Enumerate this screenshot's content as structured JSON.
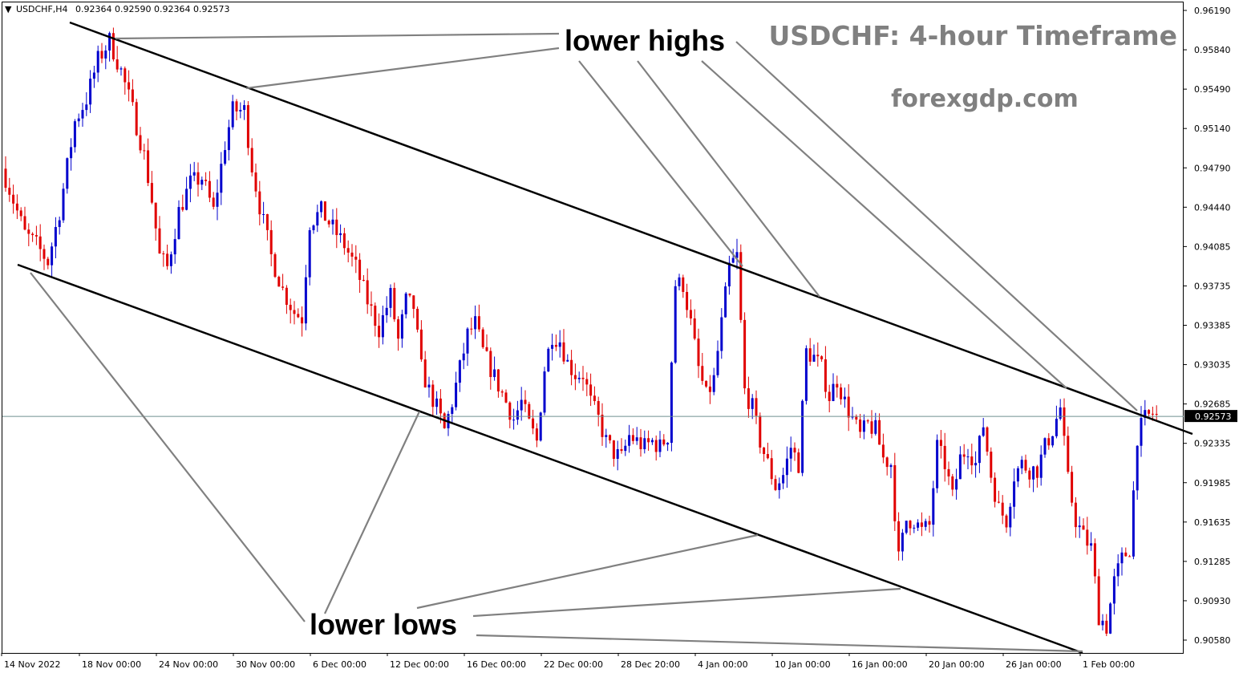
{
  "header": {
    "symbol": "USDCHF,H4",
    "ohlc": "0.92364 0.92590 0.92364 0.92573",
    "caret": "▼"
  },
  "watermark": {
    "title": "USDCHF: 4-hour Timeframe",
    "site": "forexgdp.com"
  },
  "annotations": {
    "lower_highs": "lower highs",
    "lower_lows": "lower lows"
  },
  "chart_data": {
    "type": "candlestick",
    "symbol": "USDCHF",
    "timeframe": "H4",
    "ylim": [
      0.9045,
      0.9626
    ],
    "y_ticks": [
      "0.96190",
      "0.95840",
      "0.95490",
      "0.95140",
      "0.94790",
      "0.94440",
      "0.94085",
      "0.93735",
      "0.93385",
      "0.93035",
      "0.92685",
      "0.92335",
      "0.91985",
      "0.91635",
      "0.91285",
      "0.90930",
      "0.90580"
    ],
    "x_ticks": [
      "14 Nov 2022",
      "18 Nov 00:00",
      "24 Nov 00:00",
      "30 Nov 00:00",
      "6 Dec 00:00",
      "12 Dec 00:00",
      "16 Dec 00:00",
      "22 Dec 00:00",
      "28 Dec 20:00",
      "4 Jan 00:00",
      "10 Jan 00:00",
      "16 Jan 00:00",
      "20 Jan 00:00",
      "26 Jan 00:00",
      "1 Feb 00:00"
    ],
    "current_price": "0.92573",
    "bull_color": "#0000CD",
    "bear_color": "#E00000",
    "bar_count": 300,
    "bar_step_px": 4.8,
    "anchors": [
      [
        0,
        0.947
      ],
      [
        5,
        0.942
      ],
      [
        8,
        0.941
      ],
      [
        11,
        0.9395
      ],
      [
        14,
        0.944
      ],
      [
        18,
        0.952
      ],
      [
        21,
        0.954
      ],
      [
        24,
        0.9575
      ],
      [
        27,
        0.9592
      ],
      [
        30,
        0.9565
      ],
      [
        33,
        0.953
      ],
      [
        36,
        0.949
      ],
      [
        38,
        0.945
      ],
      [
        40,
        0.94
      ],
      [
        42,
        0.939
      ],
      [
        45,
        0.944
      ],
      [
        48,
        0.9465
      ],
      [
        51,
        0.947
      ],
      [
        54,
        0.944
      ],
      [
        57,
        0.95
      ],
      [
        59,
        0.953
      ],
      [
        62,
        0.953
      ],
      [
        64,
        0.948
      ],
      [
        66,
        0.9445
      ],
      [
        69,
        0.94
      ],
      [
        72,
        0.937
      ],
      [
        75,
        0.935
      ],
      [
        77,
        0.9345
      ],
      [
        79,
        0.943
      ],
      [
        82,
        0.944
      ],
      [
        85,
        0.9425
      ],
      [
        88,
        0.941
      ],
      [
        91,
        0.939
      ],
      [
        94,
        0.936
      ],
      [
        97,
        0.9335
      ],
      [
        100,
        0.9365
      ],
      [
        102,
        0.9325
      ],
      [
        104,
        0.936
      ],
      [
        106,
        0.9355
      ],
      [
        108,
        0.93
      ],
      [
        110,
        0.928
      ],
      [
        112,
        0.9265
      ],
      [
        114,
        0.9245
      ],
      [
        116,
        0.927
      ],
      [
        118,
        0.93
      ],
      [
        120,
        0.933
      ],
      [
        122,
        0.934
      ],
      [
        124,
        0.9315
      ],
      [
        126,
        0.93
      ],
      [
        128,
        0.9285
      ],
      [
        130,
        0.927
      ],
      [
        132,
        0.9255
      ],
      [
        134,
        0.927
      ],
      [
        136,
        0.925
      ],
      [
        138,
        0.9235
      ],
      [
        140,
        0.93
      ],
      [
        142,
        0.933
      ],
      [
        144,
        0.9325
      ],
      [
        146,
        0.9305
      ],
      [
        148,
        0.9295
      ],
      [
        150,
        0.9295
      ],
      [
        152,
        0.927
      ],
      [
        154,
        0.9255
      ],
      [
        156,
        0.9235
      ],
      [
        158,
        0.9225
      ],
      [
        160,
        0.922
      ],
      [
        162,
        0.924
      ],
      [
        164,
        0.9235
      ],
      [
        166,
        0.923
      ],
      [
        168,
        0.9235
      ],
      [
        170,
        0.923
      ],
      [
        172,
        0.924
      ],
      [
        174,
        0.9375
      ],
      [
        176,
        0.9375
      ],
      [
        178,
        0.934
      ],
      [
        180,
        0.93
      ],
      [
        182,
        0.9275
      ],
      [
        184,
        0.929
      ],
      [
        186,
        0.934
      ],
      [
        188,
        0.939
      ],
      [
        190,
        0.94
      ],
      [
        192,
        0.928
      ],
      [
        194,
        0.9265
      ],
      [
        196,
        0.9235
      ],
      [
        198,
        0.9215
      ],
      [
        200,
        0.9195
      ],
      [
        202,
        0.9205
      ],
      [
        204,
        0.923
      ],
      [
        206,
        0.9215
      ],
      [
        208,
        0.9315
      ],
      [
        210,
        0.931
      ],
      [
        212,
        0.93
      ],
      [
        214,
        0.9275
      ],
      [
        216,
        0.929
      ],
      [
        218,
        0.927
      ],
      [
        220,
        0.9255
      ],
      [
        222,
        0.924
      ],
      [
        224,
        0.925
      ],
      [
        226,
        0.9245
      ],
      [
        228,
        0.922
      ],
      [
        230,
        0.9215
      ],
      [
        232,
        0.913
      ],
      [
        234,
        0.9165
      ],
      [
        236,
        0.9165
      ],
      [
        238,
        0.9155
      ],
      [
        240,
        0.916
      ],
      [
        242,
        0.923
      ],
      [
        244,
        0.9215
      ],
      [
        246,
        0.9185
      ],
      [
        248,
        0.922
      ],
      [
        250,
        0.923
      ],
      [
        252,
        0.9215
      ],
      [
        254,
        0.925
      ],
      [
        256,
        0.9205
      ],
      [
        258,
        0.9175
      ],
      [
        260,
        0.9165
      ],
      [
        262,
        0.9205
      ],
      [
        264,
        0.9215
      ],
      [
        266,
        0.921
      ],
      [
        268,
        0.921
      ],
      [
        270,
        0.923
      ],
      [
        272,
        0.9245
      ],
      [
        274,
        0.9265
      ],
      [
        276,
        0.92
      ],
      [
        278,
        0.9165
      ],
      [
        280,
        0.915
      ],
      [
        282,
        0.914
      ],
      [
        284,
        0.908
      ],
      [
        286,
        0.907
      ],
      [
        288,
        0.911
      ],
      [
        290,
        0.913
      ],
      [
        292,
        0.914
      ],
      [
        294,
        0.924
      ],
      [
        296,
        0.9255
      ],
      [
        298,
        0.926
      ],
      [
        299,
        0.92573
      ]
    ],
    "trendlines": [
      {
        "name": "upper-channel",
        "t1": 0,
        "p1": 0.961,
        "t2": 310,
        "p2": 0.9245
      },
      {
        "name": "lower-channel",
        "t1": 0,
        "p1": 0.9395,
        "t2": 290,
        "p2": 0.905
      }
    ]
  }
}
